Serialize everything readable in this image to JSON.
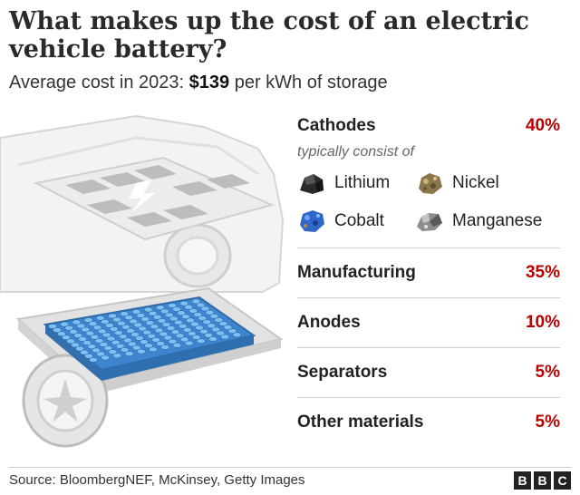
{
  "title": "What makes up the cost of an electric vehicle battery?",
  "subtitle": {
    "prefix": "Average cost in 2023: ",
    "amount": "$139",
    "suffix": " per kWh of storage"
  },
  "cathodes": {
    "label": "Cathodes",
    "value": "40%",
    "note": "typically consist of",
    "minerals": [
      {
        "name": "Lithium",
        "icon": "lithium-rock-icon",
        "color": "#2b2b2b"
      },
      {
        "name": "Nickel",
        "icon": "nickel-rock-icon",
        "color": "#8a7648"
      },
      {
        "name": "Cobalt",
        "icon": "cobalt-rock-icon",
        "color": "#2f66c8"
      },
      {
        "name": "Manganese",
        "icon": "manganese-rock-icon",
        "color": "#8c8c8c"
      }
    ]
  },
  "components": [
    {
      "label": "Manufacturing",
      "value": "35%"
    },
    {
      "label": "Anodes",
      "value": "10%"
    },
    {
      "label": "Separators",
      "value": "5%"
    },
    {
      "label": "Other materials",
      "value": "5%"
    }
  ],
  "source": "Source: BloombergNEF, McKinsey, Getty Images",
  "logo": [
    "B",
    "B",
    "C"
  ],
  "colors": {
    "accent": "#b80000",
    "cells": "#4a9fe0"
  }
}
